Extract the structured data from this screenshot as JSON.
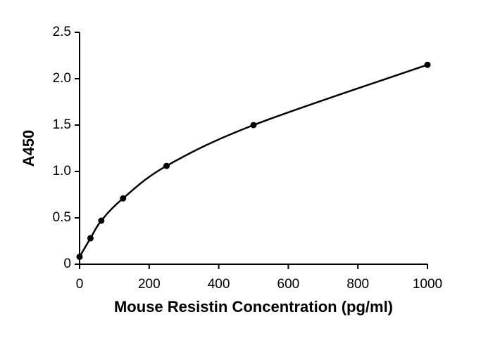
{
  "chart_data": {
    "type": "line",
    "x_label": "Mouse Resistin Concentration (pg/ml)",
    "y_label": "A450",
    "x": [
      0,
      31.25,
      62.5,
      125,
      250,
      500,
      1000
    ],
    "series": [
      {
        "color": "#000000",
        "values": [
          0.08,
          0.28,
          0.47,
          0.71,
          1.06,
          1.5,
          2.15
        ]
      }
    ],
    "xlim": [
      0,
      1000
    ],
    "xticks": [
      0,
      200,
      400,
      600,
      800,
      1000
    ],
    "ylim": [
      0,
      2.5
    ],
    "yticks": [
      0,
      0.5,
      {
        "value": 1,
        "label": "1.0"
      },
      1.5,
      {
        "value": 2,
        "label": "2.0"
      },
      2.5
    ]
  }
}
